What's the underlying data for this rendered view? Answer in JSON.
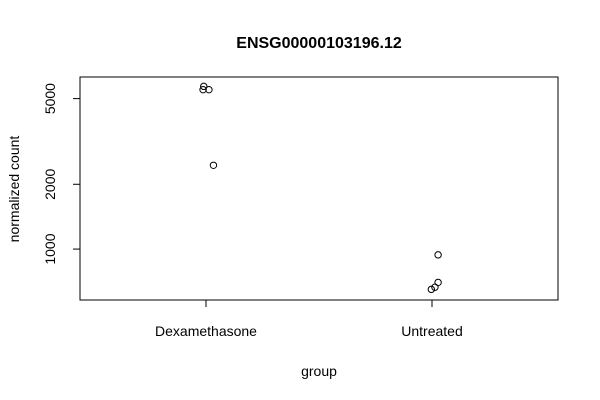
{
  "chart_data": {
    "type": "scatter",
    "title": "ENSG00000103196.12",
    "xlabel": "group",
    "ylabel": "normalized count",
    "y_scale": "log",
    "ylim": [
      580,
      6300
    ],
    "y_ticks": [
      1000,
      2000,
      5000
    ],
    "y_tick_labels": [
      "1000",
      "2000",
      "5000"
    ],
    "categories": [
      "Dexamethasone",
      "Untreated"
    ],
    "grid": false,
    "points": [
      {
        "group": "Dexamethasone",
        "jitter": -0.01,
        "y": 5700
      },
      {
        "group": "Dexamethasone",
        "jitter": -0.013,
        "y": 5500
      },
      {
        "group": "Dexamethasone",
        "jitter": 0.013,
        "y": 5500
      },
      {
        "group": "Dexamethasone",
        "jitter": 0.033,
        "y": 2450
      },
      {
        "group": "Untreated",
        "jitter": 0.027,
        "y": 940
      },
      {
        "group": "Untreated",
        "jitter": 0.027,
        "y": 700
      },
      {
        "group": "Untreated",
        "jitter": 0.013,
        "y": 665
      },
      {
        "group": "Untreated",
        "jitter": -0.003,
        "y": 650
      }
    ]
  }
}
